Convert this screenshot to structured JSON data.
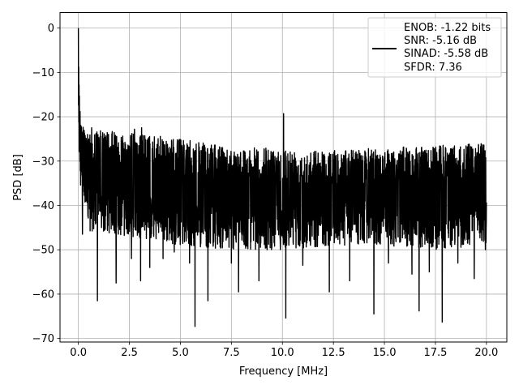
{
  "chart_data": {
    "type": "line",
    "xlabel": "Frequency [MHz]",
    "ylabel": "PSD [dB]",
    "xlim": [
      -0.9,
      21.0
    ],
    "ylim": [
      -70.8,
      3.5
    ],
    "xticks": [
      0.0,
      2.5,
      5.0,
      7.5,
      10.0,
      12.5,
      15.0,
      17.5,
      20.0
    ],
    "xtick_labels": [
      "0.0",
      "2.5",
      "5.0",
      "7.5",
      "10.0",
      "12.5",
      "15.0",
      "17.5",
      "20.0"
    ],
    "yticks": [
      0,
      -10,
      -20,
      -30,
      -40,
      -50,
      -60,
      -70
    ],
    "ytick_labels": [
      "0",
      "−10",
      "−20",
      "−30",
      "−40",
      "−50",
      "−60",
      "−70"
    ],
    "grid": true,
    "legend": {
      "placement": "top-right",
      "entries": [
        "ENOB: -1.22 bits",
        "SNR: -5.16 dB",
        "SINAD: -5.58 dB",
        "SFDR: 7.36"
      ]
    },
    "series": [
      {
        "color": "#000000",
        "x_range": [
          0.0,
          20.0
        ],
        "noise_upper_envelope": [
          [
            0.5,
            -23
          ],
          [
            2.5,
            -23.5
          ],
          [
            5.0,
            -25
          ],
          [
            7.5,
            -27
          ],
          [
            10.0,
            -27
          ],
          [
            12.5,
            -27.5
          ],
          [
            15.0,
            -27
          ],
          [
            17.5,
            -26.5
          ],
          [
            20.0,
            -26
          ]
        ],
        "noise_lower_envelope": [
          [
            0.5,
            -46
          ],
          [
            2.5,
            -47
          ],
          [
            5.0,
            -49
          ],
          [
            7.5,
            -50
          ],
          [
            10.0,
            -50
          ],
          [
            12.5,
            -49
          ],
          [
            15.0,
            -49
          ],
          [
            17.5,
            -50
          ],
          [
            20.0,
            -49
          ]
        ],
        "low_freq_decay": [
          [
            0.0,
            0
          ],
          [
            0.02,
            -8
          ],
          [
            0.05,
            -15
          ],
          [
            0.1,
            -20
          ],
          [
            0.2,
            -22
          ],
          [
            0.4,
            -24
          ]
        ],
        "peaks": [
          [
            10.06,
            -19.3
          ],
          [
            0.65,
            -22.5
          ],
          [
            3.1,
            -22.5
          ],
          [
            2.75,
            -22.8
          ]
        ],
        "dips": [
          [
            0.2,
            -46.5
          ],
          [
            0.93,
            -61.5
          ],
          [
            1.85,
            -57.5
          ],
          [
            2.6,
            -52
          ],
          [
            3.05,
            -57
          ],
          [
            3.5,
            -54
          ],
          [
            4.15,
            -52
          ],
          [
            4.7,
            -50.5
          ],
          [
            5.45,
            -53
          ],
          [
            5.72,
            -67.3
          ],
          [
            6.35,
            -61.5
          ],
          [
            7.5,
            -53
          ],
          [
            7.85,
            -59.5
          ],
          [
            8.85,
            -57
          ],
          [
            9.25,
            -50
          ],
          [
            10.17,
            -65.4
          ],
          [
            11.0,
            -53.5
          ],
          [
            12.3,
            -59.5
          ],
          [
            13.3,
            -57
          ],
          [
            14.48,
            -64.5
          ],
          [
            15.2,
            -53
          ],
          [
            16.35,
            -55.5
          ],
          [
            16.7,
            -63.8
          ],
          [
            17.2,
            -55
          ],
          [
            17.83,
            -66.3
          ],
          [
            18.6,
            -53
          ],
          [
            19.4,
            -56.5
          ],
          [
            19.95,
            -50
          ]
        ]
      }
    ]
  }
}
